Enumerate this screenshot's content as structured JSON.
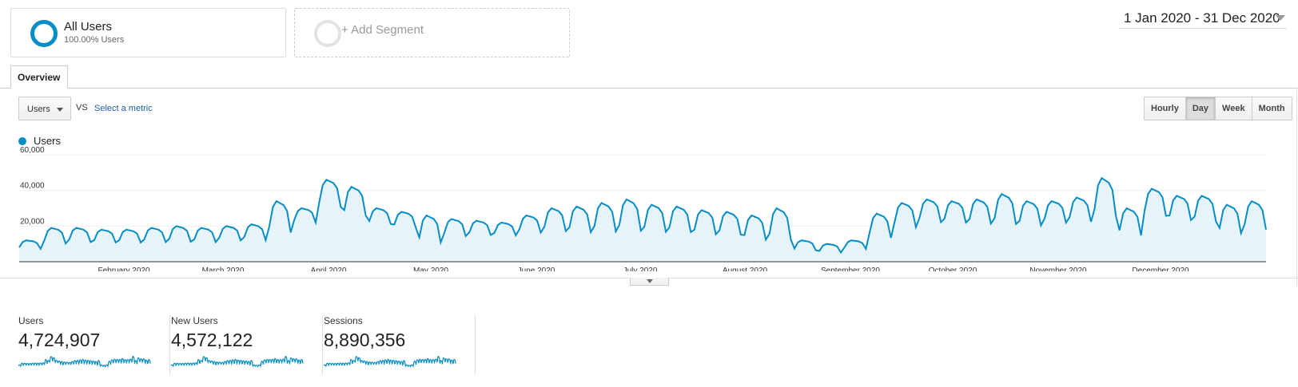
{
  "segments": {
    "active": {
      "title": "All Users",
      "subtitle": "100.00% Users"
    },
    "add_label": "+ Add Segment"
  },
  "date_range": "1 Jan 2020 - 31 Dec 2020",
  "tabs": [
    {
      "label": "Overview"
    }
  ],
  "metric_selector": {
    "selected": "Users",
    "vs": "VS",
    "select_metric": "Select a metric"
  },
  "granularity": {
    "options": [
      "Hourly",
      "Day",
      "Week",
      "Month"
    ],
    "active": "Day"
  },
  "legend": {
    "label": "Users",
    "color": "#058dc7"
  },
  "chart_data": {
    "type": "area",
    "title": "",
    "series": [
      {
        "name": "Users",
        "color": "#058dc7"
      }
    ],
    "y_ticks": [
      "60,000",
      "40,000",
      "20,000"
    ],
    "ylim": [
      0,
      60000
    ],
    "x_labels": [
      "February 2020",
      "March 2020",
      "April 2020",
      "May 2020",
      "June 2020",
      "July 2020",
      "August 2020",
      "September 2020",
      "October 2020",
      "November 2020",
      "December 2020"
    ],
    "weekly_peaks": [
      {
        "week_of": "Jan 2020",
        "peak": 12000,
        "trough": 6000
      },
      {
        "week_of": "Jan 2020",
        "peak": 19000,
        "trough": 8000
      },
      {
        "week_of": "Jan 2020",
        "peak": 19000,
        "trough": 9000
      },
      {
        "week_of": "Jan 2020",
        "peak": 18000,
        "trough": 9000
      },
      {
        "week_of": "Feb 2020",
        "peak": 18000,
        "trough": 9000
      },
      {
        "week_of": "Feb 2020",
        "peak": 19000,
        "trough": 9000
      },
      {
        "week_of": "Feb 2020",
        "peak": 20000,
        "trough": 9000
      },
      {
        "week_of": "Feb 2020",
        "peak": 19000,
        "trough": 9000
      },
      {
        "week_of": "Mar 2020",
        "peak": 20000,
        "trough": 10000
      },
      {
        "week_of": "Mar 2020",
        "peak": 21000,
        "trough": 10000
      },
      {
        "week_of": "Mar 2020",
        "peak": 34000,
        "trough": 12000
      },
      {
        "week_of": "Mar 2020",
        "peak": 30000,
        "trough": 20000
      },
      {
        "week_of": "Mar 2020",
        "peak": 46000,
        "trough": 27000
      },
      {
        "week_of": "Apr 2020",
        "peak": 42000,
        "trough": 22000
      },
      {
        "week_of": "Apr 2020",
        "peak": 30000,
        "trough": 19000
      },
      {
        "week_of": "Apr 2020",
        "peak": 28000,
        "trough": 17000
      },
      {
        "week_of": "Apr 2020",
        "peak": 26000,
        "trough": 7000
      },
      {
        "week_of": "May 2020",
        "peak": 24000,
        "trough": 12000
      },
      {
        "week_of": "May 2020",
        "peak": 23000,
        "trough": 13000
      },
      {
        "week_of": "May 2020",
        "peak": 22000,
        "trough": 13000
      },
      {
        "week_of": "May 2020",
        "peak": 26000,
        "trough": 14000
      },
      {
        "week_of": "Jun 2020",
        "peak": 30000,
        "trough": 14000
      },
      {
        "week_of": "Jun 2020",
        "peak": 31000,
        "trough": 13000
      },
      {
        "week_of": "Jun 2020",
        "peak": 33000,
        "trough": 13000
      },
      {
        "week_of": "Jun 2020",
        "peak": 35000,
        "trough": 13000
      },
      {
        "week_of": "Jul 2020",
        "peak": 32000,
        "trough": 13000
      },
      {
        "week_of": "Jul 2020",
        "peak": 31000,
        "trough": 13000
      },
      {
        "week_of": "Jul 2020",
        "peak": 29000,
        "trough": 12000
      },
      {
        "week_of": "Jul 2020",
        "peak": 28000,
        "trough": 12000
      },
      {
        "week_of": "Aug 2020",
        "peak": 26000,
        "trough": 9000
      },
      {
        "week_of": "Aug 2020",
        "peak": 30000,
        "trough": 8000
      },
      {
        "week_of": "Aug 2020",
        "peak": 12000,
        "trough": 5000
      },
      {
        "week_of": "Aug 2020",
        "peak": 10000,
        "trough": 4000
      },
      {
        "week_of": "Sep 2020",
        "peak": 12000,
        "trough": 6000
      },
      {
        "week_of": "Sep 2020",
        "peak": 27000,
        "trough": 10000
      },
      {
        "week_of": "Sep 2020",
        "peak": 33000,
        "trough": 16000
      },
      {
        "week_of": "Sep 2020",
        "peak": 35000,
        "trough": 19000
      },
      {
        "week_of": "Oct 2020",
        "peak": 34000,
        "trough": 19000
      },
      {
        "week_of": "Oct 2020",
        "peak": 35000,
        "trough": 18000
      },
      {
        "week_of": "Oct 2020",
        "peak": 38000,
        "trough": 17000
      },
      {
        "week_of": "Oct 2020",
        "peak": 34000,
        "trough": 17000
      },
      {
        "week_of": "Nov 2020",
        "peak": 34000,
        "trough": 19000
      },
      {
        "week_of": "Nov 2020",
        "peak": 36000,
        "trough": 19000
      },
      {
        "week_of": "Nov 2020",
        "peak": 47000,
        "trough": 20000
      },
      {
        "week_of": "Nov 2020",
        "peak": 30000,
        "trough": 11000
      },
      {
        "week_of": "Dec 2020",
        "peak": 41000,
        "trough": 22000
      },
      {
        "week_of": "Dec 2020",
        "peak": 37000,
        "trough": 20000
      },
      {
        "week_of": "Dec 2020",
        "peak": 37000,
        "trough": 19000
      },
      {
        "week_of": "Dec 2020",
        "peak": 32000,
        "trough": 12000
      },
      {
        "week_of": "Dec 2020",
        "peak": 34000,
        "trough": 14000
      }
    ]
  },
  "scorecards": [
    {
      "label": "Users",
      "value": "4,724,907"
    },
    {
      "label": "New Users",
      "value": "4,572,122"
    },
    {
      "label": "Sessions",
      "value": "8,890,356"
    }
  ]
}
